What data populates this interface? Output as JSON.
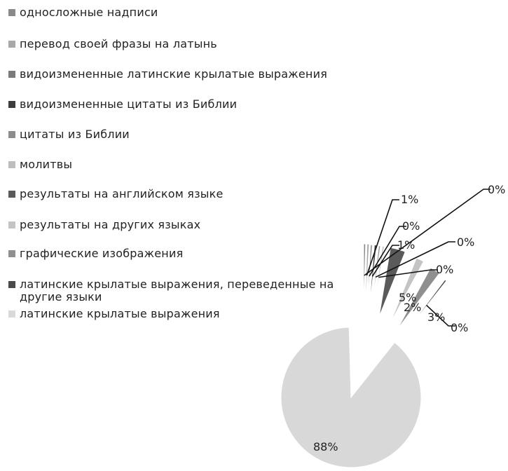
{
  "chart_data": {
    "type": "pie",
    "series": [
      {
        "label": "однoсложные надписи",
        "display": "0%",
        "color": "#8a8a8a",
        "label_pos": "top-right"
      },
      {
        "label": "перевод своей фразы на латынь",
        "display": "1%",
        "color": "#a8a8a8",
        "label_pos": "top"
      },
      {
        "label": "видоизмененные латинские крылатые выражения",
        "display": "0%",
        "color": "#7a7a7a",
        "label_pos": "top"
      },
      {
        "label": "видоизмененные цитаты из Библии",
        "display": "1%",
        "color": "#3c3c3c",
        "label_pos": "top"
      },
      {
        "label": "цитаты из Библии",
        "display": "0%",
        "color": "#8c8c8c",
        "label_pos": "right"
      },
      {
        "label": "молитвы",
        "display": "0%",
        "color": "#bdbdbd",
        "label_pos": "right"
      },
      {
        "label": "результаты на английском языке",
        "display": "5%",
        "color": "#5a5a5a",
        "label_pos": "right"
      },
      {
        "label": "результаты на других языках",
        "display": "2%",
        "color": "#c4c4c4",
        "label_pos": "right"
      },
      {
        "label": "графические изображения",
        "display": "3%",
        "color": "#8f8f8f",
        "label_pos": "right"
      },
      {
        "label": "латинские крылатые выражения, переведенные на другие языки",
        "display": "0%",
        "color": "#4a4a4a",
        "label_pos": "right"
      },
      {
        "label": "латинские крылатые выражения",
        "display": "88%",
        "color": "#d8d8d8",
        "label_pos": "inside"
      }
    ],
    "legend_position": "top-left",
    "exploded": true
  }
}
